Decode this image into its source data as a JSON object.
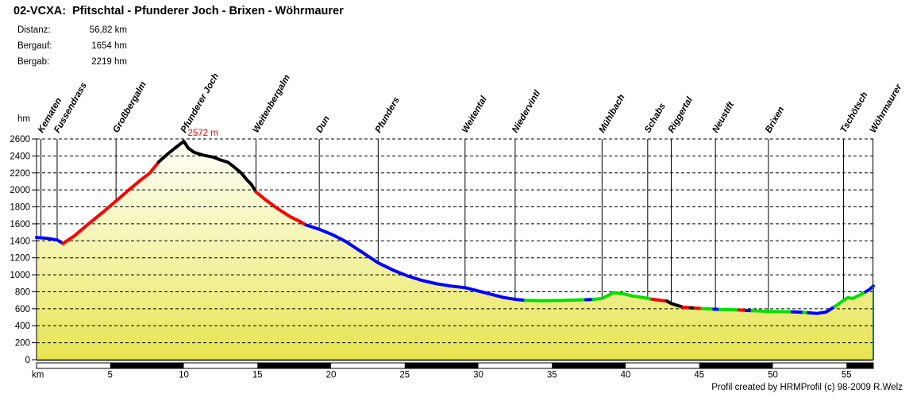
{
  "title": "02-VCXA:  Pfitschtal - Pfunderer Joch - Brixen - Wöhrmaurer",
  "stats": [
    {
      "label": "Distanz:",
      "value": "56,82 km"
    },
    {
      "label": "Bergauf:",
      "value": "1654 hm"
    },
    {
      "label": "Bergab:",
      "value": "2219 hm"
    }
  ],
  "footer": "Profil created by HRMProfil (c) 98-2009 R.Welz",
  "chart_data": {
    "type": "area",
    "xlabel": "km",
    "ylabel": "hm",
    "xlim": [
      0,
      56.82
    ],
    "ylim": [
      0,
      2600
    ],
    "x_tick_step": 5,
    "y_tick_step": 200,
    "grid": "horizontal-dashed",
    "legend": "none",
    "peak_annotation": {
      "text": "2572 m",
      "km": 10.0,
      "hm": 2572
    },
    "waypoints": [
      {
        "name": "Kematen",
        "km": 0.3
      },
      {
        "name": "Fussendrass",
        "km": 1.4
      },
      {
        "name": "Großbergalm",
        "km": 5.4
      },
      {
        "name": "Pfunderer Joch",
        "km": 10.0
      },
      {
        "name": "Weitenbergalm",
        "km": 14.9
      },
      {
        "name": "Dun",
        "km": 19.2
      },
      {
        "name": "Pfunders",
        "km": 23.2
      },
      {
        "name": "Weitental",
        "km": 29.1
      },
      {
        "name": "Niedervintl",
        "km": 32.5
      },
      {
        "name": "Mühlbach",
        "km": 38.4
      },
      {
        "name": "Schabs",
        "km": 41.5
      },
      {
        "name": "Riggertal",
        "km": 43.1
      },
      {
        "name": "Neustift",
        "km": 46.1
      },
      {
        "name": "Brixen",
        "km": 49.7
      },
      {
        "name": "Tschötsch",
        "km": 54.8
      },
      {
        "name": "Wöhrmaurer",
        "km": 56.8
      }
    ],
    "segment_colors": {
      "b": "#0000ff",
      "r": "#ff0000",
      "k": "#000000",
      "g": "#00e000"
    },
    "colors": {
      "grid": "#000000",
      "axis": "#000000",
      "annotation": "#ff0000",
      "end_marker": "#008060",
      "fill_top": "#fffffb",
      "fill_mid": "#f4f4ae",
      "fill_bottom": "#e7e44e",
      "bar_light": "#ffffff",
      "bar_dark": "#000000"
    },
    "profile": [
      [
        0.0,
        1440,
        "b"
      ],
      [
        0.7,
        1430,
        "b"
      ],
      [
        1.4,
        1410,
        "b"
      ],
      [
        1.8,
        1368,
        "b"
      ],
      [
        2.6,
        1462,
        "r"
      ],
      [
        3.5,
        1596,
        "r"
      ],
      [
        4.5,
        1736,
        "r"
      ],
      [
        5.4,
        1870,
        "r"
      ],
      [
        6.3,
        2005,
        "r"
      ],
      [
        7.1,
        2120,
        "r"
      ],
      [
        7.7,
        2200,
        "r"
      ],
      [
        8.3,
        2330,
        "r"
      ],
      [
        8.9,
        2422,
        "k"
      ],
      [
        9.4,
        2492,
        "k"
      ],
      [
        10.0,
        2572,
        "k"
      ],
      [
        10.3,
        2492,
        "k"
      ],
      [
        10.7,
        2442,
        "k"
      ],
      [
        11.3,
        2410,
        "k"
      ],
      [
        12.0,
        2386,
        "k"
      ],
      [
        12.5,
        2352,
        "k"
      ],
      [
        13.0,
        2326,
        "k"
      ],
      [
        13.4,
        2272,
        "k"
      ],
      [
        13.9,
        2200,
        "k"
      ],
      [
        14.3,
        2116,
        "k"
      ],
      [
        14.6,
        2062,
        "k"
      ],
      [
        14.9,
        1976,
        "k"
      ],
      [
        15.6,
        1876,
        "r"
      ],
      [
        16.4,
        1776,
        "r"
      ],
      [
        17.2,
        1686,
        "r"
      ],
      [
        17.9,
        1626,
        "r"
      ],
      [
        18.3,
        1586,
        "r"
      ],
      [
        19.2,
        1536,
        "b"
      ],
      [
        20.1,
        1472,
        "b"
      ],
      [
        21.0,
        1392,
        "b"
      ],
      [
        22.1,
        1266,
        "b"
      ],
      [
        23.2,
        1140,
        "b"
      ],
      [
        24.2,
        1056,
        "b"
      ],
      [
        25.2,
        986,
        "b"
      ],
      [
        26.2,
        932,
        "b"
      ],
      [
        27.2,
        893,
        "b"
      ],
      [
        28.1,
        868,
        "b"
      ],
      [
        29.1,
        848,
        "b"
      ],
      [
        30.0,
        809,
        "b"
      ],
      [
        30.9,
        769,
        "b"
      ],
      [
        31.7,
        733,
        "b"
      ],
      [
        32.5,
        711,
        "b"
      ],
      [
        33.2,
        700,
        "b"
      ],
      [
        34.4,
        695,
        "g"
      ],
      [
        35.6,
        698,
        "g"
      ],
      [
        36.8,
        703,
        "g"
      ],
      [
        37.3,
        706,
        "g"
      ],
      [
        37.8,
        710,
        "b"
      ],
      [
        38.4,
        722,
        "g"
      ],
      [
        39.2,
        790,
        "g"
      ],
      [
        39.9,
        773,
        "g"
      ],
      [
        40.5,
        750,
        "g"
      ],
      [
        41.2,
        732,
        "g"
      ],
      [
        41.8,
        712,
        "g"
      ],
      [
        42.8,
        690,
        "r"
      ],
      [
        43.1,
        662,
        "k"
      ],
      [
        43.9,
        618,
        "k"
      ],
      [
        44.4,
        612,
        "r"
      ],
      [
        44.7,
        608,
        "k"
      ],
      [
        45.2,
        603,
        "r"
      ],
      [
        46.0,
        595,
        "g"
      ],
      [
        46.4,
        592,
        "b"
      ],
      [
        47.7,
        585,
        "g"
      ],
      [
        48.2,
        580,
        "r"
      ],
      [
        48.6,
        577,
        "b"
      ],
      [
        49.7,
        570,
        "g"
      ],
      [
        51.3,
        563,
        "g"
      ],
      [
        52.1,
        557,
        "b"
      ],
      [
        52.4,
        553,
        "g"
      ],
      [
        53.0,
        545,
        "b"
      ],
      [
        53.6,
        560,
        "b"
      ],
      [
        54.2,
        625,
        "b"
      ],
      [
        54.8,
        700,
        "g"
      ],
      [
        55.1,
        730,
        "g"
      ],
      [
        55.4,
        722,
        "g"
      ],
      [
        55.9,
        760,
        "g"
      ],
      [
        56.3,
        800,
        "g"
      ],
      [
        56.6,
        832,
        "b"
      ],
      [
        56.82,
        868,
        "b"
      ]
    ]
  }
}
